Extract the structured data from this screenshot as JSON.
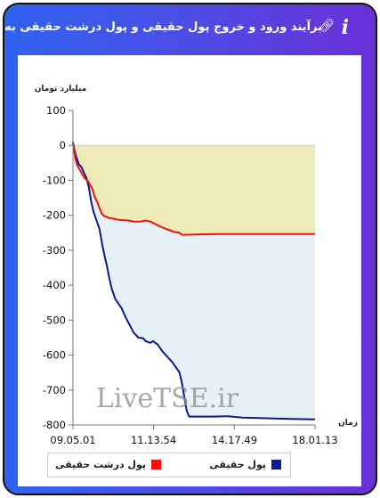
{
  "header": {
    "title": "برآیند ورود و خروج پول حقیقی و پول درشت حقیقی به بازار",
    "link_icon": "link-icon",
    "info_icon": "info-icon",
    "info_glyph": "i"
  },
  "watermark": "LiveTSE.ir",
  "colors": {
    "frame_gradient": [
      "#2f63f0",
      "#6a2fd8"
    ],
    "real_money": "#0d1a8c",
    "big_real_money": "#ef1111",
    "fill_top": "#efebb6",
    "fill_bottom": "#e6f1f8"
  },
  "chart_data": {
    "type": "line",
    "ylabel": "میلیارد تومان",
    "xlabel": "زمان",
    "ylim": [
      -800,
      100
    ],
    "yticks": [
      100,
      0,
      -100,
      -200,
      -300,
      -400,
      -500,
      -600,
      -700,
      -800
    ],
    "xlim": [
      0,
      100
    ],
    "xticks": [
      {
        "pos": 0,
        "label": "09.05.01"
      },
      {
        "pos": 33.3,
        "label": "11.13.54"
      },
      {
        "pos": 66.7,
        "label": "14.17.49"
      },
      {
        "pos": 100,
        "label": "18.01.13"
      }
    ],
    "series": [
      {
        "name": "پول حقیقی",
        "color": "#0d1a8c",
        "points": [
          [
            0,
            10
          ],
          [
            0.5,
            -10
          ],
          [
            1.2,
            -30
          ],
          [
            2.5,
            -55
          ],
          [
            3.5,
            -62
          ],
          [
            4.5,
            -78
          ],
          [
            5.5,
            -92
          ],
          [
            6.5,
            -118
          ],
          [
            7.5,
            -160
          ],
          [
            8.5,
            -190
          ],
          [
            9.5,
            -210
          ],
          [
            11,
            -240
          ],
          [
            12,
            -280
          ],
          [
            13,
            -315
          ],
          [
            14,
            -345
          ],
          [
            15,
            -380
          ],
          [
            16,
            -410
          ],
          [
            17.5,
            -440
          ],
          [
            19,
            -455
          ],
          [
            20,
            -465
          ],
          [
            21,
            -480
          ],
          [
            22,
            -495
          ],
          [
            23.5,
            -515
          ],
          [
            25,
            -535
          ],
          [
            27,
            -550
          ],
          [
            29,
            -552
          ],
          [
            30,
            -560
          ],
          [
            32,
            -565
          ],
          [
            33,
            -560
          ],
          [
            35,
            -570
          ],
          [
            37,
            -590
          ],
          [
            39,
            -605
          ],
          [
            41,
            -620
          ],
          [
            43,
            -640
          ],
          [
            44,
            -650
          ],
          [
            45,
            -680
          ],
          [
            46,
            -720
          ],
          [
            47,
            -760
          ],
          [
            48,
            -776
          ],
          [
            58,
            -776
          ],
          [
            64,
            -775
          ],
          [
            70,
            -779
          ],
          [
            80,
            -781
          ],
          [
            90,
            -783
          ],
          [
            100,
            -784
          ]
        ]
      },
      {
        "name": "پول درشت حقیقی",
        "color": "#ef1111",
        "points": [
          [
            0,
            5
          ],
          [
            0.5,
            -15
          ],
          [
            1,
            -40
          ],
          [
            2,
            -60
          ],
          [
            3,
            -72
          ],
          [
            4,
            -85
          ],
          [
            5,
            -95
          ],
          [
            6,
            -100
          ],
          [
            7,
            -112
          ],
          [
            8,
            -125
          ],
          [
            9,
            -148
          ],
          [
            10,
            -162
          ],
          [
            11,
            -180
          ],
          [
            12,
            -196
          ],
          [
            13,
            -203
          ],
          [
            14,
            -205
          ],
          [
            15,
            -208
          ],
          [
            17,
            -210
          ],
          [
            19,
            -213
          ],
          [
            21,
            -214
          ],
          [
            23,
            -215
          ],
          [
            25,
            -218
          ],
          [
            28,
            -218
          ],
          [
            30,
            -215
          ],
          [
            32,
            -218
          ],
          [
            34,
            -225
          ],
          [
            36,
            -232
          ],
          [
            38,
            -238
          ],
          [
            40,
            -243
          ],
          [
            42,
            -248
          ],
          [
            44,
            -250
          ],
          [
            45,
            -256
          ],
          [
            50,
            -255
          ],
          [
            60,
            -254
          ],
          [
            70,
            -254
          ],
          [
            80,
            -254
          ],
          [
            90,
            -254
          ],
          [
            100,
            -254
          ]
        ]
      }
    ],
    "legend_position": "bottom"
  }
}
